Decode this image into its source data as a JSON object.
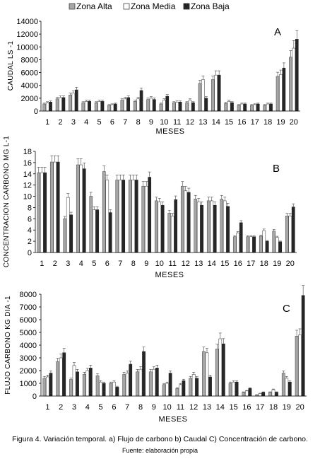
{
  "legend": [
    {
      "name": "Zona Alta",
      "color": "#a6a6a6"
    },
    {
      "name": "Zona Media",
      "color": "#ffffff"
    },
    {
      "name": "Zona Baja",
      "color": "#262626"
    }
  ],
  "caption": {
    "main": "Figura 4. Variación temporal. a) Flujo de carbono b) Caudal  C) Concentración  de carbono.",
    "source": "Fuente: elaboración propia"
  },
  "chart_data": [
    {
      "panel": "A",
      "type": "bar",
      "ylabel": "CAUDAL LS -1",
      "xlabel": "MESES",
      "ylim": [
        0,
        14000
      ],
      "yticks": [
        0,
        2000,
        4000,
        6000,
        8000,
        10000,
        12000,
        14000
      ],
      "grid": false,
      "categories": [
        "1",
        "2",
        "3",
        "4",
        "5",
        "6",
        "7",
        "8",
        "9",
        "10",
        "11",
        "12",
        "13",
        "14",
        "15",
        "16",
        "17",
        "18",
        "19",
        "20"
      ],
      "series": [
        {
          "name": "Zona Alta",
          "values": [
            1100,
            1900,
            2500,
            1300,
            1300,
            900,
            1700,
            1500,
            1800,
            1100,
            1300,
            1300,
            4300,
            4900,
            1200,
            900,
            900,
            900,
            5400,
            8400
          ]
        },
        {
          "name": "Zona Media",
          "values": [
            1300,
            2100,
            2800,
            1500,
            1500,
            1000,
            1900,
            1900,
            2000,
            1700,
            1400,
            1700,
            4900,
            5600,
            1500,
            1100,
            1000,
            1100,
            5700,
            9800
          ]
        },
        {
          "name": "Zona Baja",
          "values": [
            1400,
            2100,
            3300,
            1500,
            1500,
            1100,
            2100,
            3200,
            1800,
            2300,
            1400,
            1300,
            2000,
            5600,
            1300,
            1100,
            1100,
            1100,
            6700,
            11200
          ]
        }
      ]
    },
    {
      "panel": "B",
      "type": "bar",
      "ylabel": "CONCENTRACION CARBONO MG L-1",
      "xlabel": "MESES",
      "ylim": [
        0,
        18
      ],
      "yticks": [
        0,
        2,
        4,
        6,
        8,
        10,
        12,
        14,
        16,
        18
      ],
      "grid": false,
      "categories": [
        "1",
        "2",
        "3",
        "4",
        "5",
        "6",
        "7",
        "8",
        "9",
        "10",
        "11",
        "12",
        "13",
        "14",
        "15",
        "16",
        "17",
        "18",
        "19",
        "20"
      ],
      "series": [
        {
          "name": "Zona Alta",
          "values": [
            14.2,
            16.1,
            6.0,
            15.6,
            10.0,
            14.4,
            12.9,
            12.9,
            11.8,
            9.2,
            7.0,
            11.8,
            9.5,
            9.2,
            9.5,
            2.8,
            2.8,
            2.9,
            3.8,
            6.5
          ]
        },
        {
          "name": "Zona Media",
          "values": [
            14.2,
            16.1,
            9.8,
            15.6,
            7.6,
            12.9,
            12.9,
            12.9,
            11.8,
            9.0,
            6.5,
            11.0,
            9.0,
            9.2,
            9.2,
            3.5,
            2.8,
            3.9,
            2.7,
            6.5
          ]
        },
        {
          "name": "Zona Baja",
          "values": [
            14.2,
            16.1,
            6.7,
            14.9,
            7.6,
            7.1,
            12.9,
            12.9,
            13.4,
            8.4,
            9.4,
            10.7,
            8.4,
            8.4,
            8.2,
            5.3,
            2.8,
            2.0,
            1.9,
            8.1
          ]
        }
      ]
    },
    {
      "panel": "C",
      "type": "bar",
      "ylabel": "FLUJO CARBONO KG DIA -1",
      "xlabel": "MESES",
      "ylim": [
        0,
        8000
      ],
      "yticks": [
        0,
        1000,
        2000,
        3000,
        4000,
        5000,
        6000,
        7000,
        8000
      ],
      "grid": false,
      "categories": [
        "1",
        "2",
        "3",
        "4",
        "5",
        "6",
        "7",
        "8",
        "9",
        "10",
        "11",
        "12",
        "13",
        "14",
        "15",
        "16",
        "17",
        "18",
        "19",
        "20"
      ],
      "series": [
        {
          "name": "Zona Alta",
          "values": [
            1400,
            2700,
            1300,
            1700,
            1600,
            1000,
            1700,
            1900,
            1900,
            900,
            600,
            1400,
            3500,
            3700,
            1000,
            300,
            100,
            300,
            1800,
            4700
          ]
        },
        {
          "name": "Zona Media",
          "values": [
            1500,
            3000,
            2400,
            2000,
            1100,
            1100,
            1800,
            2100,
            2100,
            1000,
            900,
            1700,
            3400,
            4500,
            1100,
            400,
            200,
            500,
            1400,
            4800
          ]
        },
        {
          "name": "Zona Baja",
          "values": [
            1800,
            3400,
            1900,
            2200,
            1000,
            700,
            2500,
            3500,
            2200,
            1800,
            1200,
            1400,
            1500,
            4100,
            1100,
            600,
            300,
            300,
            1100,
            7900
          ]
        }
      ]
    }
  ]
}
